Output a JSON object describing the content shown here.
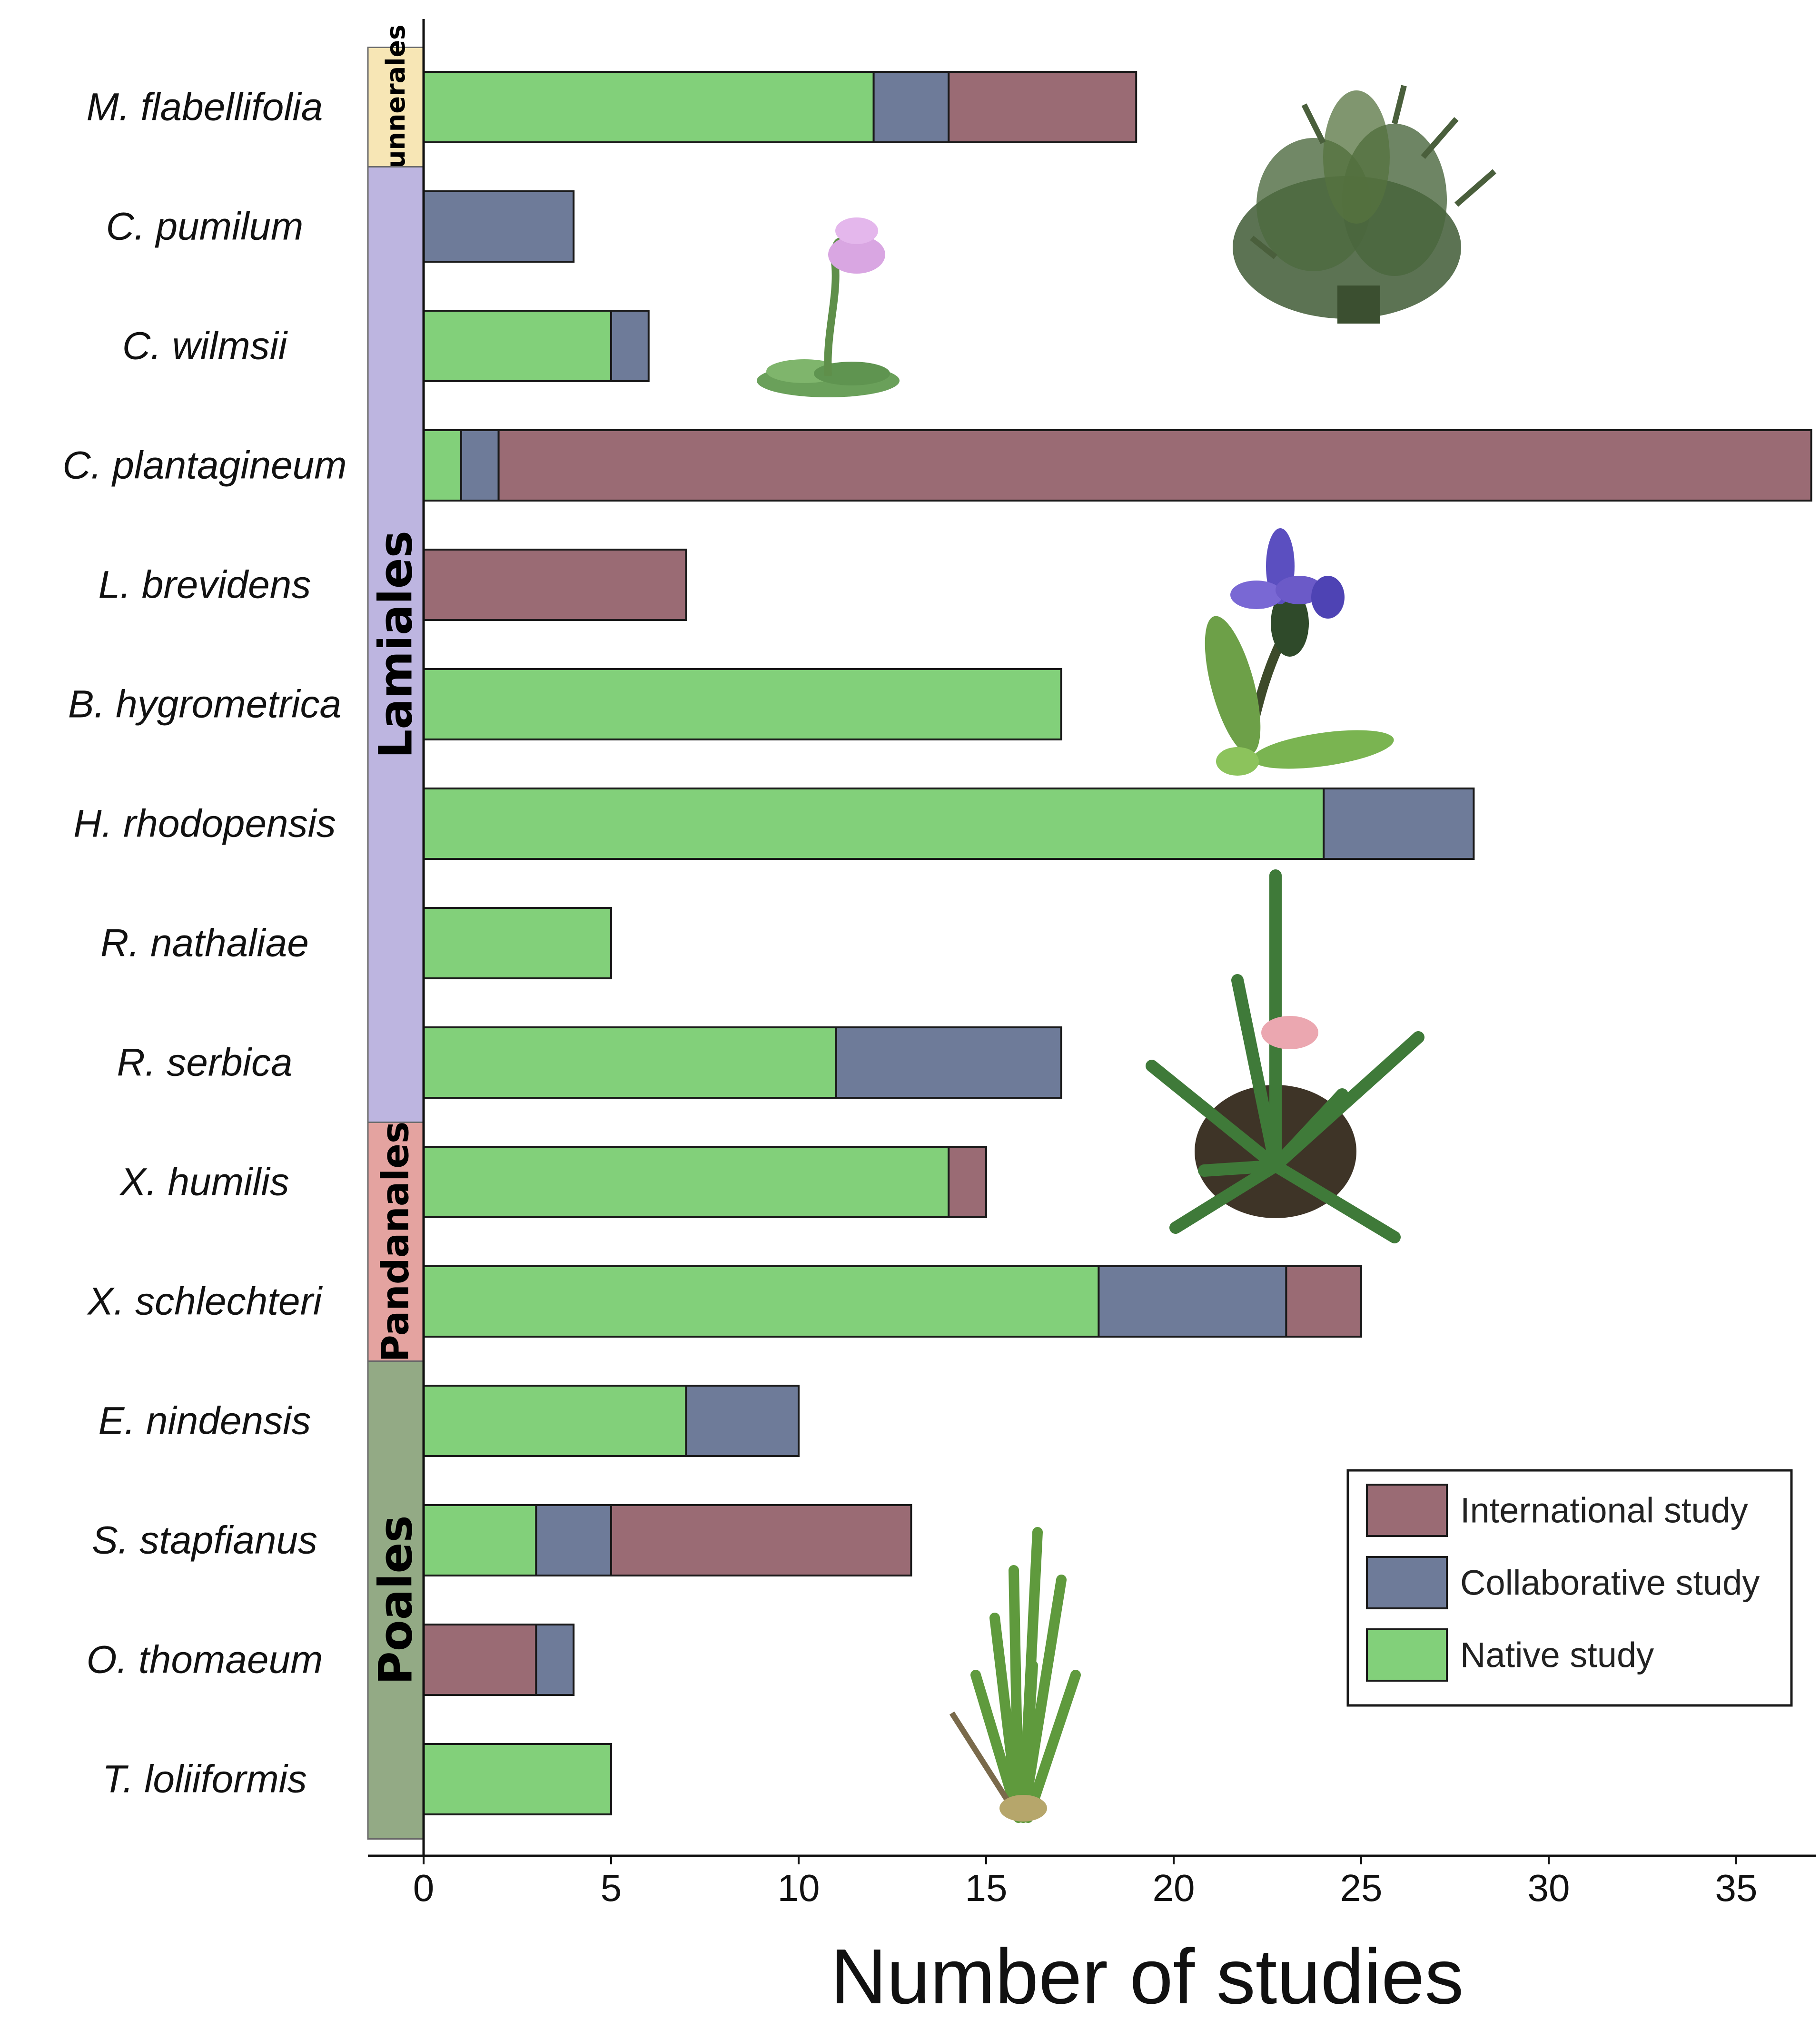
{
  "chart_data": {
    "type": "bar",
    "orientation": "horizontal",
    "stacked": true,
    "xlabel": "Number of studies",
    "xlim": [
      0,
      37
    ],
    "xticks": [
      0,
      5,
      10,
      15,
      20,
      25,
      30,
      35
    ],
    "grid": false,
    "legend_position": "bottom-right",
    "categories": [
      "M. flabellifolia",
      "C. pumilum",
      "C. wilmsii",
      "C. plantagineum",
      "L. brevidens",
      "B. hygrometrica",
      "H. rhodopensis",
      "R. nathaliae",
      "R. serbica",
      "X. humilis",
      "X. schlechteri",
      "E. nindensis",
      "S. stapfianus",
      "O. thomaeum",
      "T. loliiformis"
    ],
    "series": [
      {
        "name": "Native study",
        "color": "#82d07a",
        "values": [
          12,
          0,
          5,
          1,
          0,
          17,
          24,
          5,
          11,
          14,
          18,
          7,
          3,
          0,
          5
        ]
      },
      {
        "name": "Collaborative study",
        "color": "#6e7b99",
        "values": [
          2,
          4,
          1,
          1,
          0,
          0,
          4,
          0,
          6,
          0,
          5,
          3,
          2,
          1,
          0
        ]
      },
      {
        "name": "International study",
        "color": "#9a6b74",
        "values": [
          5,
          0,
          0,
          35,
          7,
          0,
          0,
          0,
          0,
          1,
          2,
          0,
          8,
          3,
          0
        ]
      }
    ],
    "stack_order": [
      "Native study",
      "Collaborative study",
      "International study"
    ],
    "segment_order_overrides": {
      "O. thomaeum": [
        "International study",
        "Collaborative study"
      ]
    },
    "groups": [
      {
        "name": "Gunnerales",
        "start": 0,
        "end": 0,
        "color": "#f7e6b5"
      },
      {
        "name": "Lamiales",
        "start": 1,
        "end": 8,
        "color": "#bdb5e0"
      },
      {
        "name": "Pandanales",
        "start": 9,
        "end": 10,
        "color": "#e4a3a0"
      },
      {
        "name": "Poales",
        "start": 11,
        "end": 14,
        "color": "#93aa85"
      }
    ],
    "legend": [
      "International study",
      "Collaborative study",
      "Native study"
    ]
  }
}
